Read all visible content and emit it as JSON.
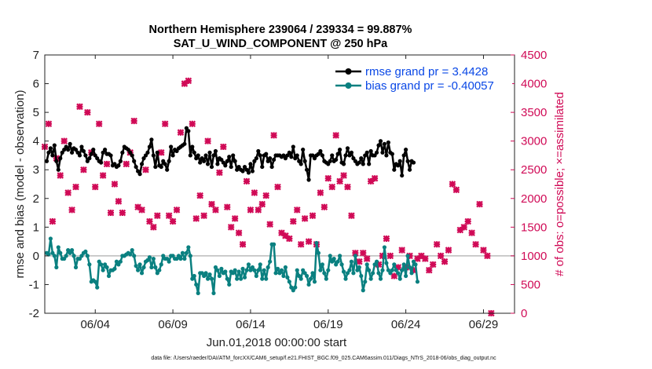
{
  "chart_data": {
    "type": "line",
    "title": "Northern Hemisphere 239064 / 239334 = 99.887%",
    "subtitle": "SAT_U_WIND_COMPONENT @ 250 hPa",
    "xlabel": "Jun.01,2018 00:00:00 start",
    "ylabel": "rmse and bias (model - observation)",
    "y2label": "# of obs: o=possible; ×=assimilated",
    "footnote": "data file: /Users/raeder/DAI/ATM_forcXX/CAM6_setup/f.e21.FHIST_BGC.f09_025.CAM6assim.011/Diags_NTrS_2018-06/obs_diag_output.nc",
    "xlim": [
      0.5,
      30.75
    ],
    "ylim": [
      -2,
      7
    ],
    "y2lim": [
      0,
      4500
    ],
    "xticks": [
      3.75,
      8.75,
      13.75,
      18.75,
      23.75,
      28.75
    ],
    "xtick_labels": [
      "06/04",
      "06/09",
      "06/14",
      "06/19",
      "06/24",
      "06/29"
    ],
    "yticks": [
      -2,
      -1,
      0,
      1,
      2,
      3,
      4,
      5,
      6,
      7
    ],
    "ytick_labels": [
      "-2",
      "-1",
      "0",
      "1",
      "2",
      "3",
      "4",
      "5",
      "6",
      "7"
    ],
    "y2ticks": [
      0,
      500,
      1000,
      1500,
      2000,
      2500,
      3000,
      3500,
      4000,
      4500
    ],
    "y2tick_labels": [
      "0",
      "500",
      "1000",
      "1500",
      "2000",
      "2500",
      "3000",
      "3500",
      "4000",
      "4500"
    ],
    "zero_line": 0,
    "legend_position": "top-right",
    "colors": {
      "rmse": "#000000",
      "bias": "#0a8080",
      "obs": "#d00a56",
      "legend_text": "#0a48e6",
      "right_axis": "#d00a56",
      "zero_line": "#bbbbbb"
    },
    "series": [
      {
        "name": "rmse grand pr = 3.4428",
        "x_start": 0.625,
        "x_step": 0.125,
        "values": [
          3.3,
          3.6,
          3.75,
          3.5,
          3.85,
          3.3,
          3.0,
          3.4,
          3.6,
          3.7,
          3.8,
          3.7,
          3.9,
          3.6,
          3.75,
          3.7,
          3.6,
          3.5,
          3.8,
          3.65,
          3.5,
          3.3,
          3.4,
          3.55,
          3.7,
          3.5,
          3.4,
          3.3,
          3.25,
          3.6,
          3.7,
          3.55,
          3.55,
          3.5,
          3.15,
          3.2,
          3.1,
          3.15,
          3.3,
          3.6,
          3.8,
          3.75,
          3.7,
          3.6,
          3.5,
          3.3,
          3.1,
          2.95,
          2.85,
          3.2,
          3.4,
          3.5,
          3.6,
          3.8,
          4.05,
          3.5,
          3.1,
          3.6,
          3.15,
          3.1,
          3.3,
          3.2,
          3.0,
          3.3,
          3.8,
          3.5,
          3.7,
          3.65,
          3.75,
          3.8,
          3.85,
          3.9,
          4.45,
          4.35,
          3.5,
          3.8,
          3.6,
          3.4,
          3.5,
          3.25,
          3.4,
          3.3,
          3.5,
          3.2,
          3.6,
          3.1,
          3.5,
          3.65,
          3.2,
          3.4,
          3.35,
          3.25,
          3.15,
          3.3,
          3.45,
          3.1,
          3.5,
          3.3,
          3.0,
          3.1,
          3.0,
          2.95,
          3.1,
          3.0,
          2.9,
          3.2,
          2.95,
          3.3,
          3.4,
          3.65,
          3.5,
          3.1,
          3.5,
          3.55,
          3.3,
          3.4,
          3.1,
          3.35,
          3.5,
          3.5,
          3.5,
          3.45,
          3.5,
          3.4,
          3.5,
          3.6,
          3.45,
          3.8,
          3.4,
          3.5,
          3.3,
          3.2,
          3.7,
          3.3,
          3.0,
          2.65,
          3.5,
          3.5,
          3.4,
          3.5,
          3.55,
          3.65,
          3.5,
          3.3,
          3.25,
          3.2,
          3.3,
          3.5,
          3.3,
          3.35,
          3.55,
          3.7,
          3.25,
          3.2,
          3.5,
          3.75,
          3.5,
          3.6,
          3.4,
          3.3,
          3.2,
          3.25,
          3.4,
          3.2,
          3.5,
          3.6,
          3.2,
          3.65,
          3.5,
          3.5,
          3.6,
          3.85,
          4.0,
          3.6,
          3.9,
          3.5,
          3.95,
          3.6,
          3.55,
          3.0,
          3.2,
          3.15,
          3.3,
          2.8,
          3.5,
          3.7,
          3.3,
          3.0,
          3.3,
          3.25
        ]
      },
      {
        "name": "bias grand pr = -0.40057",
        "x_start": 0.625,
        "x_step": 0.125,
        "values": [
          0.1,
          0.05,
          0.6,
          0.1,
          0.0,
          -0.4,
          0.3,
          0.1,
          -0.1,
          -0.1,
          0.0,
          0.2,
          0.1,
          0.2,
          0.0,
          -0.4,
          -0.1,
          -0.1,
          0.0,
          0.1,
          0.15,
          0.0,
          -0.3,
          -0.9,
          -0.85,
          -0.9,
          -1.1,
          -0.2,
          -0.3,
          -0.5,
          -0.3,
          -0.4,
          -0.7,
          -0.5,
          -0.5,
          -0.45,
          -0.2,
          -0.3,
          -0.2,
          0.0,
          0.0,
          0.05,
          0.1,
          0.05,
          0.2,
          0.0,
          -0.35,
          -0.5,
          -0.3,
          -0.6,
          -0.4,
          -0.2,
          -0.15,
          -0.05,
          -0.4,
          -0.1,
          -0.4,
          -0.6,
          -0.5,
          -0.3,
          0.0,
          -0.1,
          -0.1,
          -0.2,
          0.0,
          0.0,
          -0.1,
          -0.1,
          0.0,
          -0.1,
          0.1,
          -0.1,
          0.1,
          0.3,
          0.0,
          -0.8,
          -0.7,
          -1.0,
          -1.3,
          -0.6,
          -0.6,
          -0.7,
          -0.6,
          -0.8,
          -0.65,
          -0.8,
          -1.3,
          -0.4,
          -0.5,
          -0.7,
          -0.45,
          -0.6,
          -0.55,
          -0.8,
          -1.0,
          -0.55,
          -0.6,
          -0.5,
          -0.8,
          -0.55,
          -0.8,
          -0.45,
          -0.75,
          -0.5,
          -0.3,
          -0.5,
          -0.4,
          -0.5,
          -0.7,
          -0.5,
          -0.3,
          -0.8,
          -0.5,
          -0.8,
          -0.4,
          -0.2,
          0.4,
          0.4,
          -0.6,
          -0.45,
          -0.6,
          -0.5,
          -0.7,
          -0.4,
          -0.75,
          -0.9,
          -1.1,
          -1.2,
          -1.1,
          -0.5,
          -0.7,
          -0.8,
          -0.5,
          -0.6,
          -0.7,
          -1.0,
          -0.8,
          -0.6,
          -0.9,
          0.45,
          0.1,
          -0.5,
          -0.3,
          -0.6,
          -0.8,
          -0.5,
          0.0,
          -0.2,
          -0.1,
          -0.3,
          -0.2,
          0.0,
          -0.3,
          -0.55,
          -0.8,
          -0.6,
          -0.5,
          -0.2,
          -0.6,
          0.0,
          -0.5,
          -0.4,
          -0.7,
          -1.2,
          -0.9,
          -0.3,
          -0.5,
          -0.8,
          -0.6,
          -0.3,
          -0.2,
          -0.6,
          -0.8,
          -0.5,
          0.3,
          -0.25,
          -0.5,
          -0.6,
          -0.5,
          -0.3,
          -0.5,
          -0.6,
          -0.8,
          -0.5,
          -0.3,
          -0.7,
          0.0,
          -0.4,
          -0.6,
          -0.2,
          -0.3,
          -0.9
        ]
      }
    ],
    "obs_counts": {
      "name": "# of obs assimilated",
      "x_start": 0.5,
      "x_step": 0.25,
      "values": [
        2900,
        3300,
        1600,
        2700,
        2400,
        3000,
        2100,
        1800,
        2200,
        3600,
        2500,
        3500,
        2800,
        2200,
        3300,
        2400,
        2600,
        1750,
        2250,
        1950,
        1750,
        2600,
        2800,
        3350,
        1850,
        1800,
        2500,
        1600,
        1500,
        1700,
        2800,
        3300,
        1700,
        1600,
        1800,
        3150,
        4000,
        4050,
        3300,
        1650,
        2050,
        1700,
        3000,
        1900,
        1800,
        2450,
        2900,
        1850,
        1500,
        1650,
        1400,
        1200,
        2300,
        1800,
        2100,
        1800,
        1900,
        2050,
        1550,
        3100,
        2200,
        1400,
        1350,
        1300,
        1600,
        1800,
        1200,
        1650,
        1250,
        1700,
        1200,
        2100,
        1850,
        2350,
        2200,
        3100,
        2300,
        2400,
        2200,
        1700,
        1050,
        900,
        1050,
        950,
        2300,
        2350,
        850,
        1000,
        1300,
        1000,
        650,
        800,
        1100,
        800,
        1000,
        750,
        950,
        1000,
        950,
        750,
        850,
        1200,
        1000,
        900,
        1100,
        2250,
        2150,
        1450,
        1500,
        1600,
        1400,
        1200,
        1900,
        1100,
        1000,
        0
      ]
    }
  }
}
